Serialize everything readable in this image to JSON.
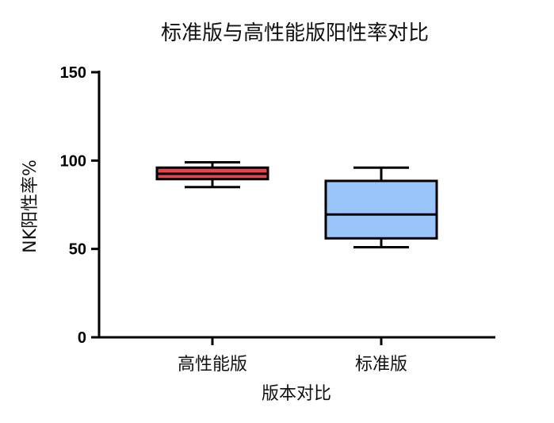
{
  "chart_data": {
    "type": "box",
    "title": "标准版与高性能版阳性率对比",
    "xlabel": "版本对比",
    "ylabel": "NK阳性率%",
    "ylim": [
      0,
      150
    ],
    "yticks": [
      0,
      50,
      100,
      150
    ],
    "categories": [
      "高性能版",
      "标准版"
    ],
    "boxes": [
      {
        "category": "高性能版",
        "min": 85,
        "q1": 89.5,
        "median": 92.5,
        "q3": 96,
        "max": 99,
        "fill": "#e8454a"
      },
      {
        "category": "标准版",
        "min": 51,
        "q1": 56,
        "median": 69.5,
        "q3": 88.5,
        "max": 96,
        "fill": "#99c5fa"
      }
    ],
    "grid": false,
    "legend": "none"
  }
}
